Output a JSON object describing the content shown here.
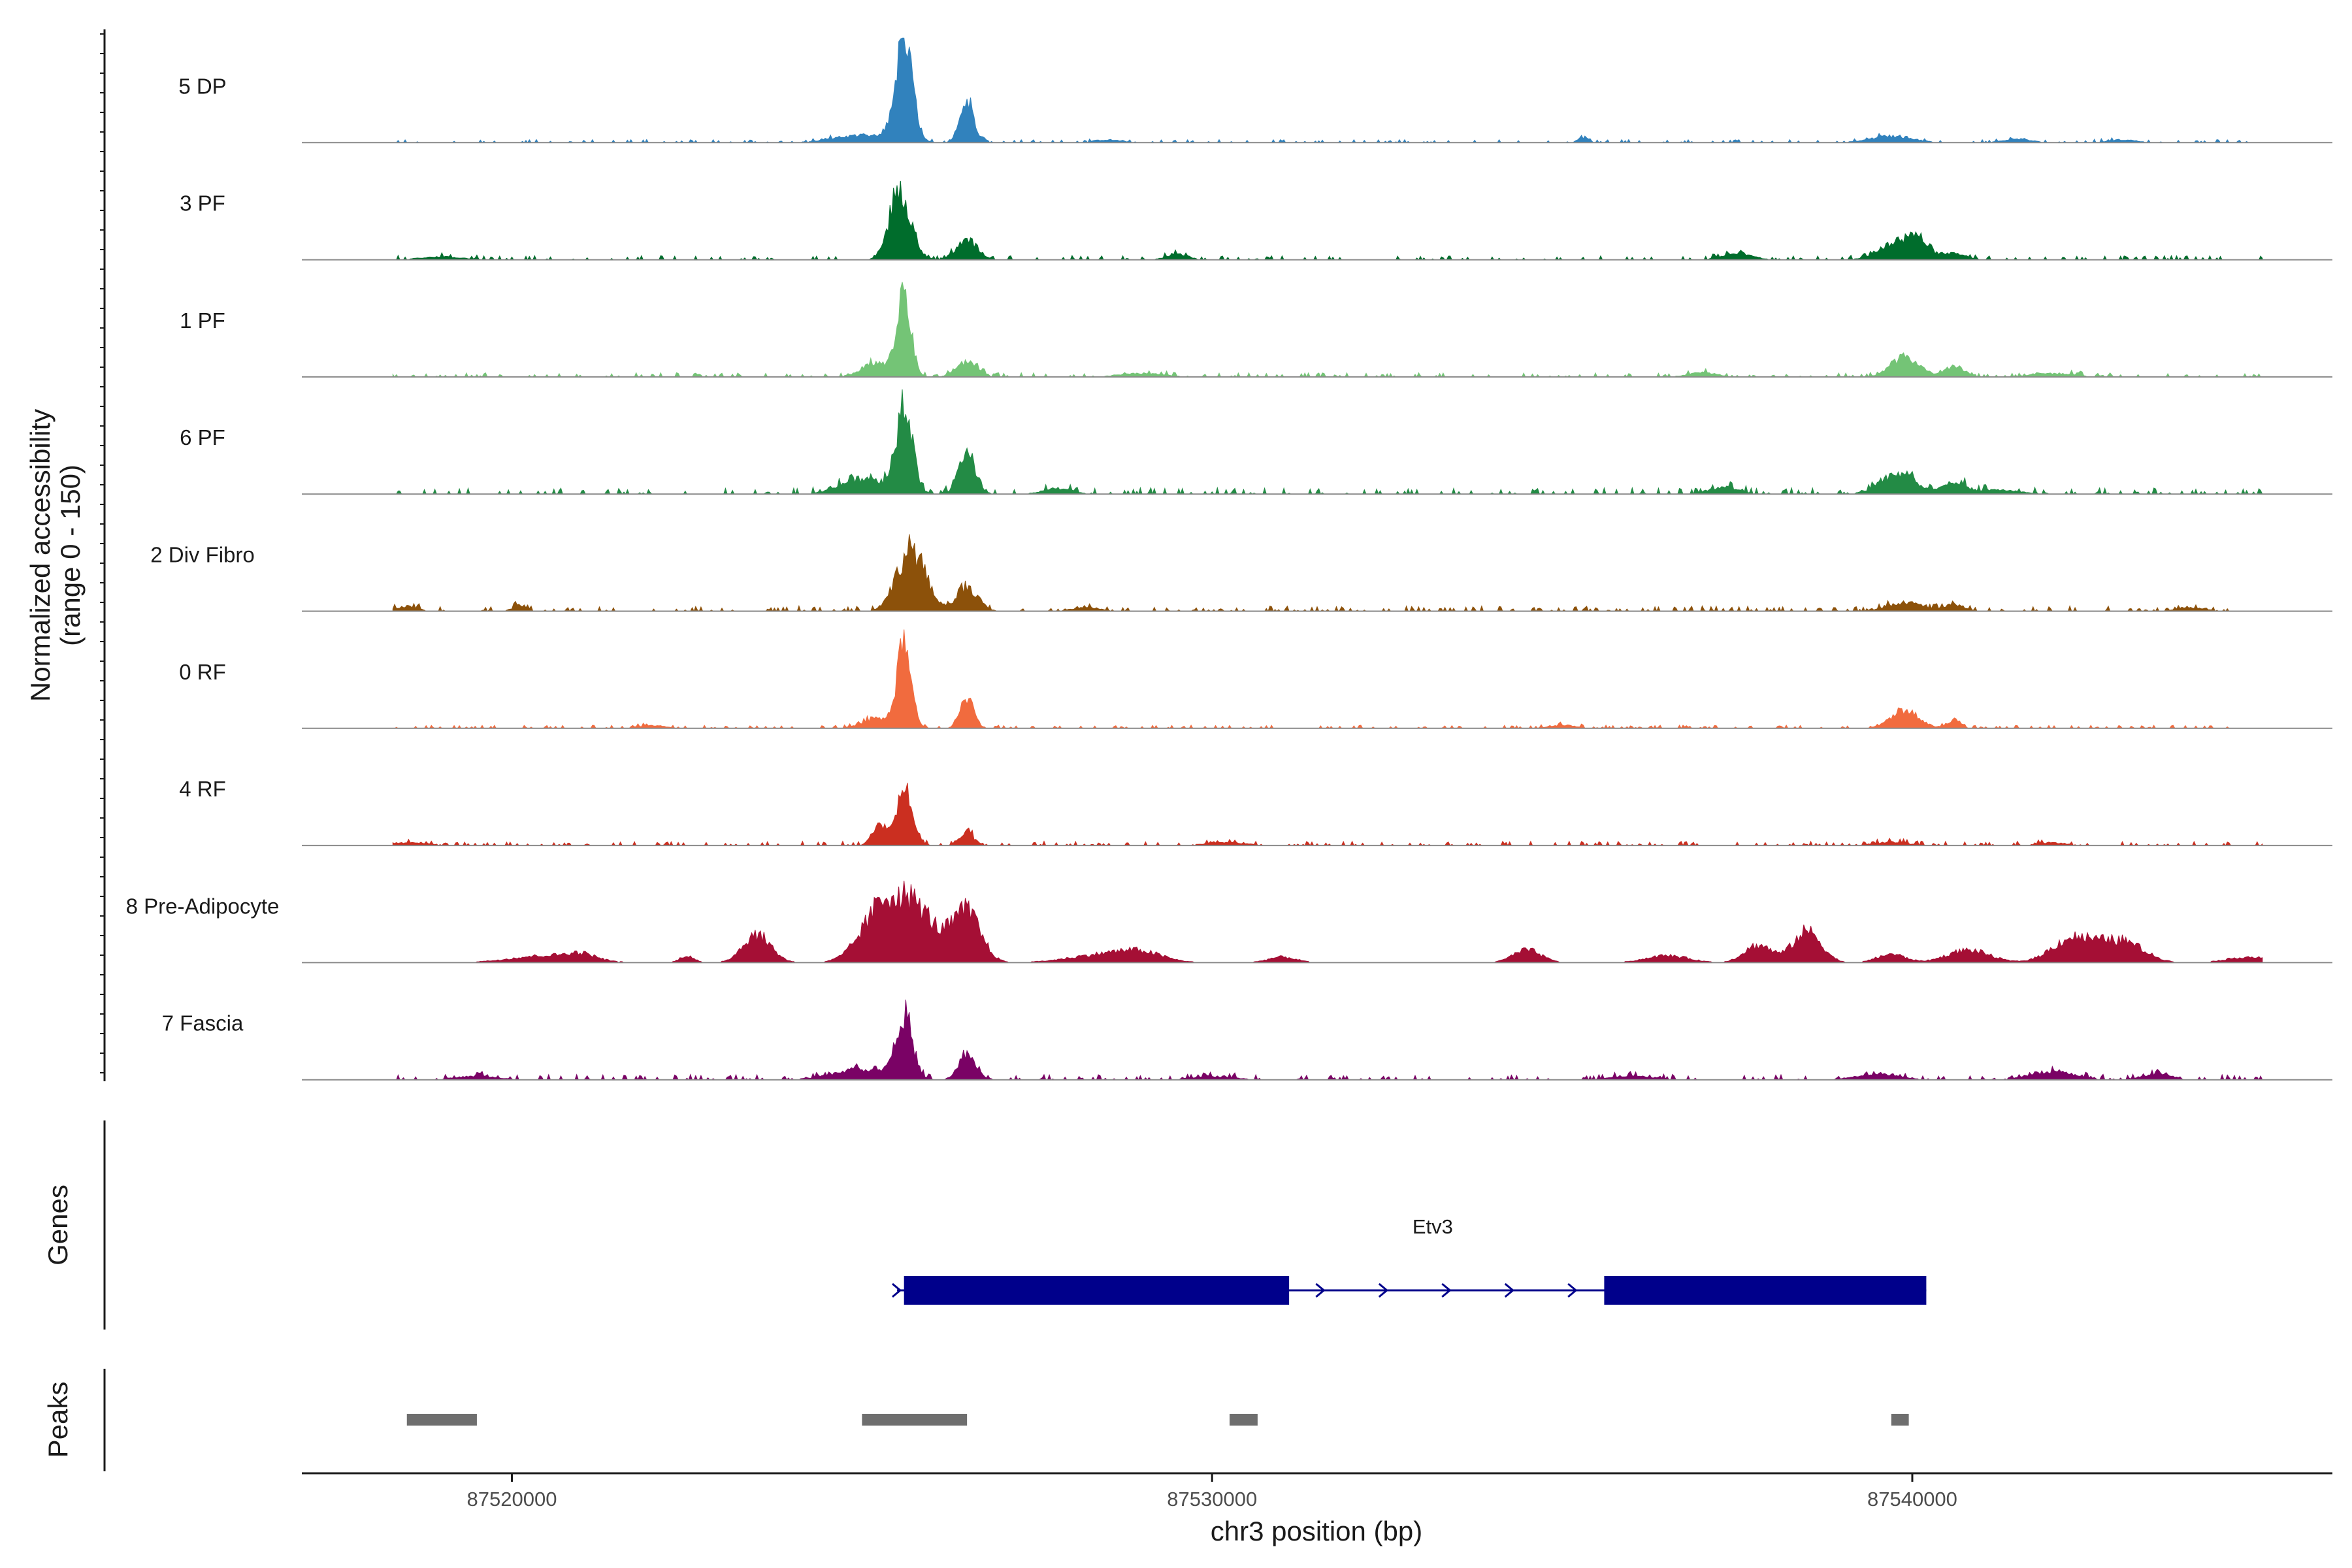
{
  "chart_data": {
    "type": "area",
    "title": "",
    "ylabel_line1": "Normalized accessibility",
    "ylabel_line2": "(range 0 - 150)",
    "xlabel": "chr3 position (bp)",
    "ylim": [
      0,
      150
    ],
    "xlim": [
      87517000,
      87546000
    ],
    "x_ticks": [
      87520000,
      87530000,
      87540000
    ],
    "x_tick_labels": [
      "87520000",
      "87530000",
      "87540000"
    ],
    "series": [
      {
        "name": "5 DP",
        "color": "#3182bd",
        "base": 3,
        "peaks": [
          [
            87525600,
            140,
            120
          ],
          [
            87526500,
            60,
            100
          ],
          [
            87525000,
            10,
            400
          ],
          [
            87539700,
            9,
            300
          ],
          [
            87535300,
            7,
            80
          ],
          [
            87528500,
            4,
            200
          ],
          [
            87541500,
            5,
            200
          ],
          [
            87543000,
            4,
            200
          ]
        ]
      },
      {
        "name": "3 PF",
        "color": "#006d2c",
        "base": 4,
        "peaks": [
          [
            87525550,
            100,
            150
          ],
          [
            87526500,
            28,
            150
          ],
          [
            87539800,
            25,
            250
          ],
          [
            87540100,
            22,
            150
          ],
          [
            87529500,
            8,
            150
          ],
          [
            87537500,
            10,
            200
          ],
          [
            87540600,
            10,
            150
          ],
          [
            87519000,
            4,
            300
          ]
        ]
      },
      {
        "name": "1 PF",
        "color": "#74c476",
        "base": 4,
        "peaks": [
          [
            87525600,
            110,
            100
          ],
          [
            87526500,
            22,
            150
          ],
          [
            87525200,
            20,
            200
          ],
          [
            87539900,
            28,
            200
          ],
          [
            87540600,
            14,
            150
          ],
          [
            87529000,
            5,
            300
          ],
          [
            87537000,
            6,
            200
          ],
          [
            87542000,
            5,
            300
          ]
        ]
      },
      {
        "name": "6 PF",
        "color": "#238b45",
        "base": 6,
        "peaks": [
          [
            87525600,
            120,
            120
          ],
          [
            87526500,
            55,
            120
          ],
          [
            87525000,
            22,
            300
          ],
          [
            87539800,
            30,
            250
          ],
          [
            87540600,
            18,
            150
          ],
          [
            87527800,
            8,
            200
          ],
          [
            87541200,
            6,
            300
          ],
          [
            87537300,
            10,
            200
          ]
        ]
      },
      {
        "name": "2 Div Fibro",
        "color": "#8c510a",
        "base": 5,
        "peaks": [
          [
            87525700,
            90,
            200
          ],
          [
            87526500,
            35,
            150
          ],
          [
            87539900,
            12,
            250
          ],
          [
            87540600,
            9,
            150
          ],
          [
            87518500,
            7,
            150
          ],
          [
            87520100,
            7,
            100
          ],
          [
            87528200,
            5,
            200
          ],
          [
            87544000,
            5,
            200
          ]
        ]
      },
      {
        "name": "0 RF",
        "color": "#f16b3e",
        "base": 3,
        "peaks": [
          [
            87525600,
            120,
            100
          ],
          [
            87526500,
            40,
            100
          ],
          [
            87525200,
            14,
            200
          ],
          [
            87539900,
            25,
            200
          ],
          [
            87540600,
            10,
            100
          ],
          [
            87522000,
            4,
            200
          ],
          [
            87535000,
            4,
            200
          ]
        ]
      },
      {
        "name": "4 RF",
        "color": "#cb2f20",
        "base": 4,
        "peaks": [
          [
            87525600,
            80,
            120
          ],
          [
            87525250,
            28,
            100
          ],
          [
            87526500,
            18,
            100
          ],
          [
            87518500,
            4,
            300
          ],
          [
            87539700,
            5,
            200
          ],
          [
            87530200,
            4,
            300
          ],
          [
            87542000,
            4,
            200
          ]
        ]
      },
      {
        "name": "8 Pre-Adipocyte",
        "color": "#a50f35",
        "base": 0,
        "peaks": [
          [
            87525300,
            75,
            300
          ],
          [
            87525800,
            65,
            300
          ],
          [
            87526500,
            70,
            200
          ],
          [
            87523500,
            40,
            200
          ],
          [
            87538500,
            45,
            200
          ],
          [
            87537800,
            25,
            200
          ],
          [
            87542300,
            35,
            300
          ],
          [
            87543000,
            30,
            300
          ],
          [
            87534500,
            18,
            200
          ],
          [
            87520500,
            10,
            500
          ],
          [
            87528500,
            12,
            500
          ],
          [
            87536500,
            10,
            300
          ],
          [
            87540800,
            18,
            300
          ],
          [
            87544800,
            8,
            300
          ],
          [
            87529000,
            10,
            300
          ],
          [
            87531000,
            8,
            200
          ],
          [
            87521000,
            8,
            200
          ],
          [
            87522500,
            10,
            100
          ],
          [
            87539700,
            12,
            200
          ]
        ]
      },
      {
        "name": "7 Fascia",
        "color": "#7a0265",
        "base": 5,
        "peaks": [
          [
            87525600,
            90,
            120
          ],
          [
            87526500,
            35,
            120
          ],
          [
            87525000,
            15,
            400
          ],
          [
            87542000,
            12,
            300
          ],
          [
            87539500,
            8,
            300
          ],
          [
            87543500,
            8,
            200
          ],
          [
            87519500,
            5,
            300
          ],
          [
            87530000,
            5,
            300
          ],
          [
            87536000,
            5,
            300
          ]
        ]
      }
    ],
    "track_x_start": 87518300,
    "track_x_end": 87545000,
    "gene": {
      "name": "Etv3",
      "strand": "+",
      "start": 87525500,
      "end": 87540200,
      "exons": [
        [
          87525600,
          87531100
        ],
        [
          87535600,
          87540200
        ]
      ],
      "color": "#00008b",
      "track_label": "Genes"
    },
    "peaks_track": {
      "label": "Peaks",
      "color": "#6e6e6e",
      "regions": [
        [
          87518500,
          87519500
        ],
        [
          87525000,
          87526500
        ],
        [
          87530250,
          87530650
        ],
        [
          87539700,
          87539950
        ]
      ]
    }
  }
}
